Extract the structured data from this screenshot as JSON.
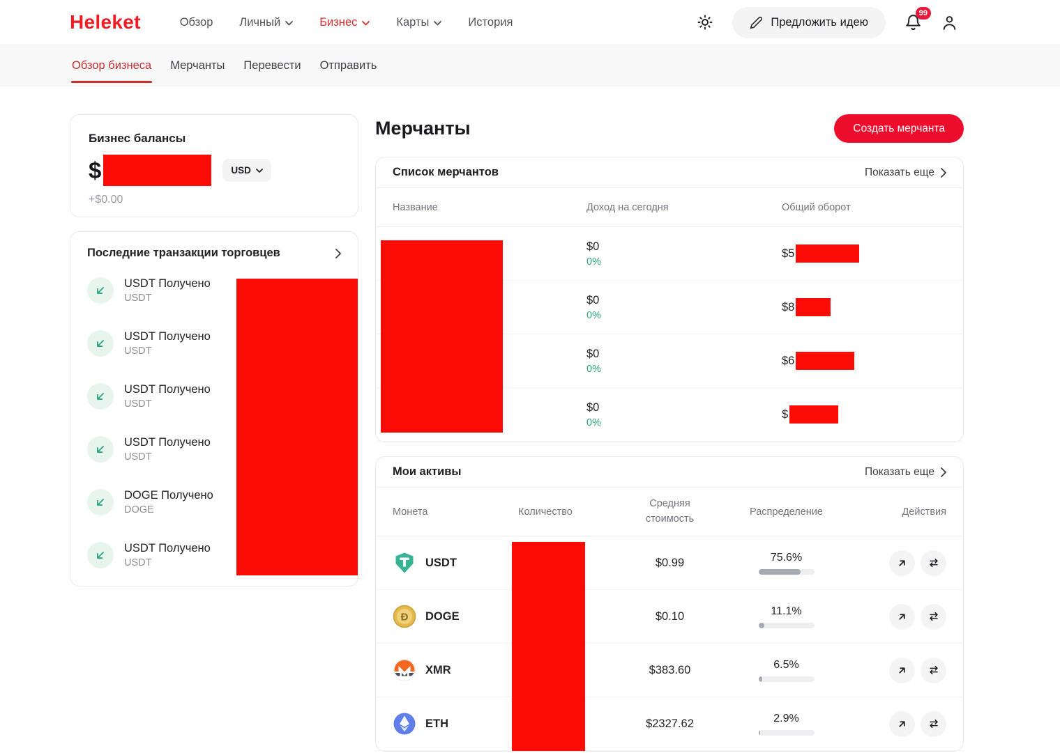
{
  "colors": {
    "accent_red": "#ec0c2b",
    "redaction_red": "#fa0b05",
    "positive_green": "#2aa876",
    "logo_red": "#ee1c23"
  },
  "header": {
    "logo": "Heleket",
    "nav": [
      {
        "label": "Обзор"
      },
      {
        "label": "Личный"
      },
      {
        "label": "Бизнес"
      },
      {
        "label": "Карты"
      },
      {
        "label": "История"
      }
    ],
    "idea_button": "Предложить идею",
    "notification_count": "99"
  },
  "subnav": {
    "tabs": [
      {
        "label": "Обзор бизнеса"
      },
      {
        "label": "Мерчанты"
      },
      {
        "label": "Перевести"
      },
      {
        "label": "Отправить"
      }
    ]
  },
  "balance_card": {
    "title": "Бизнес балансы",
    "currency_symbol": "$",
    "currency": "USD",
    "change": "+$0.00"
  },
  "transactions_card": {
    "title": "Последние транзакции торговцев",
    "items": [
      {
        "title": "USDT Получено",
        "subtitle": "USDT"
      },
      {
        "title": "USDT Получено",
        "subtitle": "USDT"
      },
      {
        "title": "USDT Получено",
        "subtitle": "USDT"
      },
      {
        "title": "USDT Получено",
        "subtitle": "USDT"
      },
      {
        "title": "DOGE Получено",
        "subtitle": "DOGE"
      },
      {
        "title": "USDT Получено",
        "subtitle": "USDT"
      }
    ]
  },
  "merchants": {
    "title": "Мерчанты",
    "create_button": "Создать мерчанта",
    "list": {
      "title": "Список мерчантов",
      "show_more": "Показать еще",
      "columns": [
        "Название",
        "Доход на сегодня",
        "Общий оборот"
      ],
      "rows": [
        {
          "income": "$0",
          "income_change": "0%",
          "turnover_prefix": "$5"
        },
        {
          "income": "$0",
          "income_change": "0%",
          "turnover_prefix": "$8"
        },
        {
          "income": "$0",
          "income_change": "0%",
          "turnover_prefix": "$6"
        },
        {
          "income": "$0",
          "income_change": "0%",
          "turnover_prefix": "$"
        }
      ]
    }
  },
  "assets": {
    "title": "Мои активы",
    "show_more": "Показать еще",
    "columns": [
      "Монета",
      "Количество",
      "Средняя стоимость",
      "Распределение",
      "Действия"
    ],
    "rows": [
      {
        "coin": "USDT",
        "price": "$0.99",
        "pct": "75.6%",
        "pct_value": 75.6
      },
      {
        "coin": "DOGE",
        "price": "$0.10",
        "pct": "11.1%",
        "pct_value": 11.1
      },
      {
        "coin": "XMR",
        "price": "$383.60",
        "pct": "6.5%",
        "pct_value": 6.5
      },
      {
        "coin": "ETH",
        "price": "$2327.62",
        "pct": "2.9%",
        "pct_value": 2.9
      }
    ]
  }
}
